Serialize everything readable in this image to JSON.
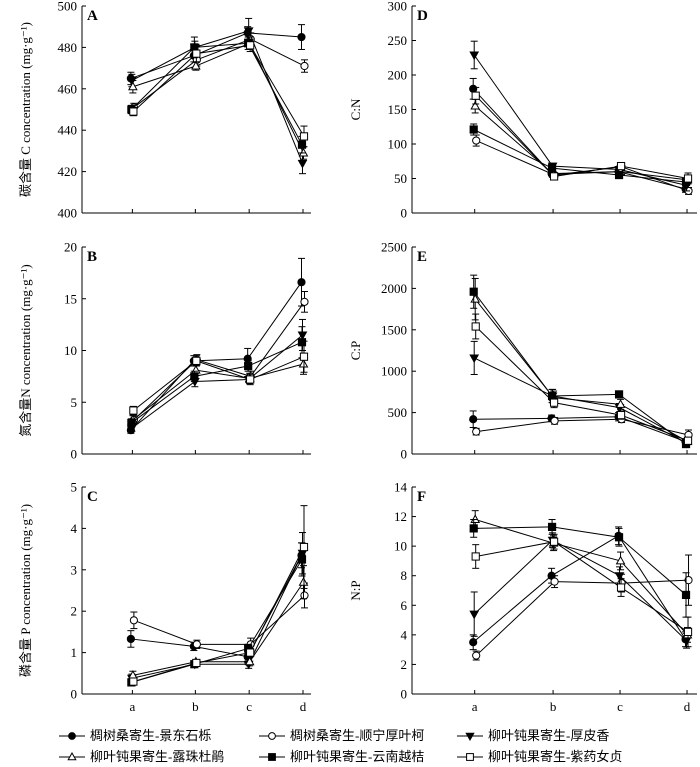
{
  "chart_data": {
    "type": "line",
    "x_categories": [
      "a",
      "b",
      "c",
      "d"
    ],
    "legend_position": "bottom",
    "series_styles": [
      {
        "name": "椆树桑寄生-景东石栎",
        "marker": "circle",
        "fill": "#000000"
      },
      {
        "name": "椆树桑寄生-顺宁厚叶柯",
        "marker": "circle",
        "fill": "#ffffff"
      },
      {
        "name": "柳叶钝果寄生-厚皮香",
        "marker": "triangle-down",
        "fill": "#000000"
      },
      {
        "name": "柳叶钝果寄生-露珠杜鹃",
        "marker": "triangle-up",
        "fill": "#ffffff"
      },
      {
        "name": "柳叶钝果寄生-云南越桔",
        "marker": "square",
        "fill": "#000000"
      },
      {
        "name": "柳叶钝果寄生-紫药女贞",
        "marker": "square",
        "fill": "#ffffff"
      }
    ],
    "panels": [
      {
        "label": "A",
        "ylabel": "碳含量 C concentration (mg·g⁻¹)",
        "ylim": [
          400,
          500
        ],
        "yticks": [
          400,
          420,
          440,
          460,
          480,
          500
        ],
        "series": [
          {
            "name": "椆树桑寄生-景东石栎",
            "values": [
              465,
              476,
              487,
              485
            ],
            "err": [
              3,
              3,
              3,
              6
            ]
          },
          {
            "name": "椆树桑寄生-顺宁厚叶柯",
            "values": [
              451,
              474,
              484,
              471
            ],
            "err": [
              2,
              3,
              3,
              3
            ]
          },
          {
            "name": "柳叶钝果寄生-厚皮香",
            "values": [
              464,
              480,
              488,
              424
            ],
            "err": [
              3,
              3,
              6,
              5
            ]
          },
          {
            "name": "柳叶钝果寄生-露珠杜鹃",
            "values": [
              461,
              471,
              482,
              429
            ],
            "err": [
              3,
              2,
              3,
              3
            ]
          },
          {
            "name": "柳叶钝果寄生-云南越桔",
            "values": [
              450,
              480,
              482,
              433
            ],
            "err": [
              2,
              5,
              3,
              4
            ]
          },
          {
            "name": "柳叶钝果寄生-紫药女贞",
            "values": [
              449,
              477,
              481,
              437
            ],
            "err": [
              2,
              4,
              3,
              5
            ]
          }
        ]
      },
      {
        "label": "B",
        "ylabel": "氮含量N concentration (mg·g⁻¹)",
        "ylim": [
          0,
          20
        ],
        "yticks": [
          0,
          5,
          10,
          15,
          20
        ],
        "series": [
          {
            "name": "椆树桑寄生-景东石栎",
            "values": [
              2.3,
              9.0,
              9.2,
              16.6
            ],
            "err": [
              0.3,
              0.5,
              1.0,
              2.3
            ]
          },
          {
            "name": "椆树桑寄生-顺宁厚叶柯",
            "values": [
              3.3,
              9.1,
              7.5,
              14.7
            ],
            "err": [
              0.4,
              0.5,
              0.5,
              1.0
            ]
          },
          {
            "name": "柳叶钝果寄生-厚皮香",
            "values": [
              2.5,
              7.0,
              7.2,
              11.5
            ],
            "err": [
              0.3,
              0.5,
              0.3,
              1.5
            ]
          },
          {
            "name": "柳叶钝果寄生-露珠杜鹃",
            "values": [
              3.3,
              8.1,
              7.3,
              8.7
            ],
            "err": [
              0.4,
              0.5,
              0.5,
              1.0
            ]
          },
          {
            "name": "柳叶钝果寄生-云南越桔",
            "values": [
              3.0,
              7.5,
              8.5,
              10.8
            ],
            "err": [
              0.4,
              0.5,
              0.5,
              1.5
            ]
          },
          {
            "name": "柳叶钝果寄生-紫药女贞",
            "values": [
              4.2,
              9.0,
              7.2,
              9.4
            ],
            "err": [
              0.4,
              0.5,
              0.5,
              1.5
            ]
          }
        ]
      },
      {
        "label": "C",
        "ylabel": "磷含量 P concentration (mg·g⁻¹)",
        "ylim": [
          0,
          5
        ],
        "yticks": [
          0,
          1,
          2,
          3,
          4,
          5
        ],
        "series": [
          {
            "name": "椆树桑寄生-景东石栎",
            "values": [
              1.33,
              1.15,
              0.9,
              3.35
            ],
            "err": [
              0.2,
              0.1,
              0.15,
              0.3
            ]
          },
          {
            "name": "椆树桑寄生-顺宁厚叶柯",
            "values": [
              1.78,
              1.2,
              1.2,
              2.38
            ],
            "err": [
              0.2,
              0.1,
              0.15,
              0.3
            ]
          },
          {
            "name": "柳叶钝果寄生-厚皮香",
            "values": [
              0.38,
              0.72,
              0.72,
              3.4
            ],
            "err": [
              0.1,
              0.05,
              0.1,
              0.5
            ]
          },
          {
            "name": "柳叶钝果寄生-露珠杜鹃",
            "values": [
              0.45,
              0.78,
              0.78,
              2.7
            ],
            "err": [
              0.1,
              0.05,
              0.1,
              0.4
            ]
          },
          {
            "name": "柳叶钝果寄生-云南越桔",
            "values": [
              0.28,
              0.72,
              1.1,
              3.25
            ],
            "err": [
              0.05,
              0.05,
              0.1,
              0.4
            ]
          },
          {
            "name": "柳叶钝果寄生-紫药女贞",
            "values": [
              0.3,
              0.75,
              1.0,
              3.55
            ],
            "err": [
              0.05,
              0.05,
              0.1,
              1.0
            ]
          }
        ]
      },
      {
        "label": "D",
        "ylabel": "C:N",
        "ylim": [
          0,
          300
        ],
        "yticks": [
          0,
          50,
          100,
          150,
          200,
          250,
          300
        ],
        "series": [
          {
            "name": "椆树桑寄生-景东石栎",
            "values": [
              180,
              57,
              60,
              35
            ],
            "err": [
              15,
              3,
              5,
              5
            ]
          },
          {
            "name": "椆树桑寄生-顺宁厚叶柯",
            "values": [
              105,
              55,
              67,
              32
            ],
            "err": [
              8,
              3,
              5,
              5
            ]
          },
          {
            "name": "柳叶钝果寄生-厚皮香",
            "values": [
              229,
              68,
              63,
              40
            ],
            "err": [
              20,
              4,
              5,
              8
            ]
          },
          {
            "name": "柳叶钝果寄生-露珠杜鹃",
            "values": [
              155,
              56,
              60,
              48
            ],
            "err": [
              10,
              3,
              5,
              5
            ]
          },
          {
            "name": "柳叶钝果寄生-云南越桔",
            "values": [
              121,
              65,
              55,
              45
            ],
            "err": [
              8,
              4,
              5,
              5
            ]
          },
          {
            "name": "柳叶钝果寄生-紫药女贞",
            "values": [
              170,
              53,
              68,
              50
            ],
            "err": [
              12,
              3,
              5,
              8
            ]
          }
        ]
      },
      {
        "label": "E",
        "ylabel": "C:P",
        "ylim": [
          0,
          2500
        ],
        "yticks": [
          0,
          500,
          1000,
          1500,
          2000,
          2500
        ],
        "series": [
          {
            "name": "椆树桑寄生-景东石栎",
            "values": [
              420,
              430,
              450,
              150
            ],
            "err": [
              100,
              40,
              50,
              30
            ]
          },
          {
            "name": "椆树桑寄生-顺宁厚叶柯",
            "values": [
              270,
              400,
              420,
              230
            ],
            "err": [
              40,
              40,
              40,
              60
            ]
          },
          {
            "name": "柳叶钝果寄生-厚皮香",
            "values": [
              1160,
              700,
              560,
              130
            ],
            "err": [
              200,
              80,
              50,
              30
            ]
          },
          {
            "name": "柳叶钝果寄生-露珠杜鹃",
            "values": [
              1870,
              680,
              600,
              150
            ],
            "err": [
              250,
              80,
              60,
              30
            ]
          },
          {
            "name": "柳叶钝果寄生-云南越桔",
            "values": [
              1960,
              700,
              720,
              120
            ],
            "err": [
              200,
              80,
              40,
              30
            ]
          },
          {
            "name": "柳叶钝果寄生-紫药女贞",
            "values": [
              1540,
              620,
              470,
              160
            ],
            "err": [
              150,
              60,
              50,
              40
            ]
          }
        ]
      },
      {
        "label": "F",
        "ylabel": "N:P",
        "ylim": [
          0,
          14
        ],
        "yticks": [
          0,
          2,
          4,
          6,
          8,
          10,
          12,
          14
        ],
        "series": [
          {
            "name": "椆树桑寄生-景东石栎",
            "values": [
              3.5,
              8.0,
              10.7,
              3.7
            ],
            "err": [
              0.5,
              0.5,
              0.6,
              0.5
            ]
          },
          {
            "name": "椆树桑寄生-顺宁厚叶柯",
            "values": [
              2.6,
              7.6,
              7.5,
              7.7
            ],
            "err": [
              0.3,
              0.4,
              0.6,
              1.7
            ]
          },
          {
            "name": "柳叶钝果寄生-厚皮香",
            "values": [
              5.4,
              10.4,
              8.0,
              3.6
            ],
            "err": [
              1.5,
              0.5,
              0.6,
              0.5
            ]
          },
          {
            "name": "柳叶钝果寄生-露珠杜鹃",
            "values": [
              11.8,
              10.2,
              9.0,
              4.0
            ],
            "err": [
              0.6,
              0.5,
              0.6,
              0.5
            ]
          },
          {
            "name": "柳叶钝果寄生-云南越桔",
            "values": [
              11.2,
              11.3,
              10.6,
              6.7
            ],
            "err": [
              0.6,
              0.5,
              0.6,
              1.5
            ]
          },
          {
            "name": "柳叶钝果寄生-紫药女贞",
            "values": [
              9.3,
              10.3,
              7.2,
              4.2
            ],
            "err": [
              0.8,
              0.5,
              0.6,
              1.0
            ]
          }
        ]
      }
    ]
  }
}
